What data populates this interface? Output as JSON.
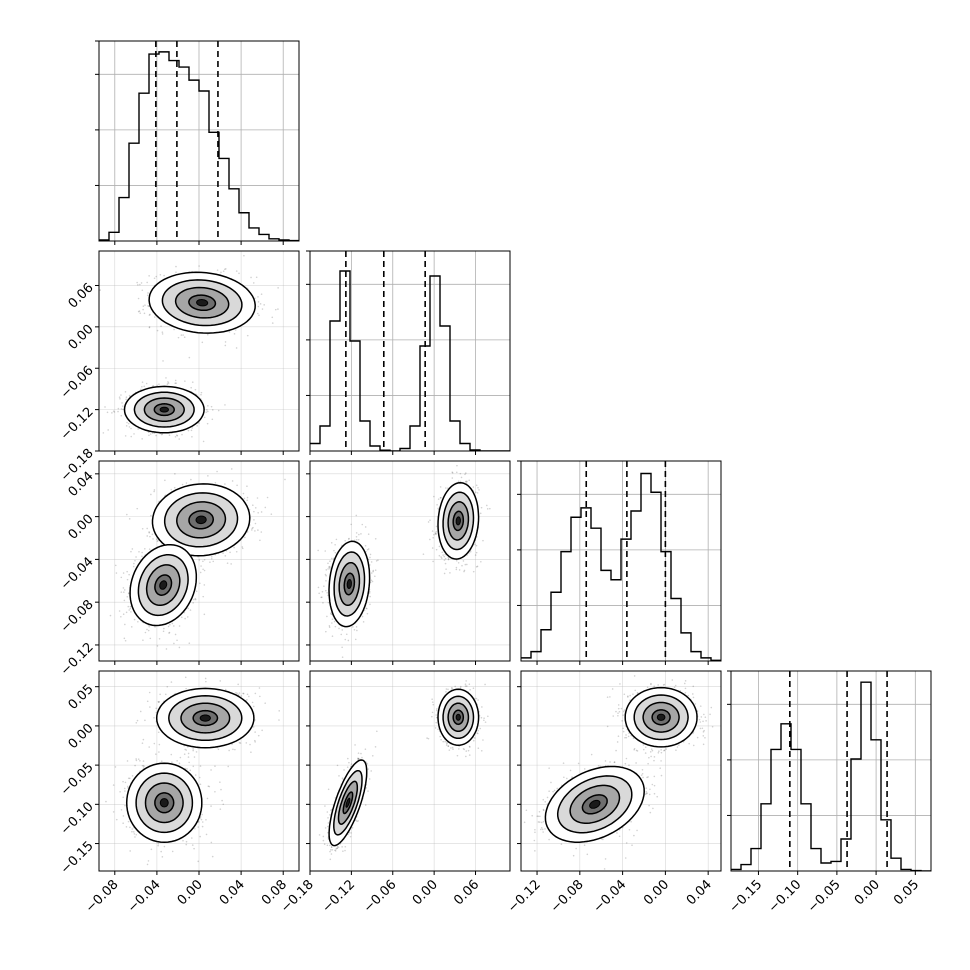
{
  "chart_data": {
    "type": "corner",
    "title": "",
    "n_params": 4,
    "parameters": [
      {
        "label": "",
        "range": [
          -0.095,
          0.095
        ],
        "tick_labels": [
          "−0.08",
          "−0.04",
          "0.00",
          "0.04",
          "0.08"
        ],
        "tick_values": [
          -0.08,
          -0.04,
          0.0,
          0.04,
          0.08
        ],
        "quantiles": [
          -0.041,
          -0.021,
          0.018
        ]
      },
      {
        "label": "",
        "range": [
          -0.18,
          0.11
        ],
        "tick_labels": [
          "−0.18",
          "−0.12",
          "−0.06",
          "0.00",
          "0.06"
        ],
        "tick_values": [
          -0.18,
          -0.12,
          -0.06,
          0.0,
          0.06
        ],
        "quantiles": [
          -0.128,
          -0.073,
          -0.013
        ]
      },
      {
        "label": "",
        "range": [
          -0.135,
          0.052
        ],
        "tick_labels": [
          "−0.12",
          "−0.08",
          "−0.04",
          "0.00",
          "0.04"
        ],
        "tick_values": [
          -0.12,
          -0.08,
          -0.04,
          0.0,
          0.04
        ],
        "quantiles": [
          -0.074,
          -0.036,
          0.0
        ]
      },
      {
        "label": "",
        "range": [
          -0.185,
          0.07
        ],
        "tick_labels": [
          "−0.15",
          "−0.10",
          "−0.05",
          "0.00",
          "0.05"
        ],
        "tick_values": [
          -0.15,
          -0.1,
          -0.05,
          0.0,
          0.05
        ],
        "quantiles": [
          -0.11,
          -0.037,
          0.014
        ]
      }
    ],
    "histograms": [
      {
        "param": 0,
        "bins": 20,
        "counts": [
          0.5,
          4,
          20,
          45,
          68,
          86,
          87,
          83,
          80,
          74,
          69,
          50,
          38,
          24,
          13,
          6,
          3,
          1,
          0.5,
          0.2
        ],
        "ymax": 92
      },
      {
        "param": 1,
        "bins": 20,
        "counts": [
          3,
          10,
          52,
          72,
          44,
          12,
          2,
          0.3,
          0,
          1,
          10,
          42,
          70,
          50,
          12,
          3,
          0.4,
          0,
          0,
          0
        ],
        "ymax": 80
      },
      {
        "param": 2,
        "bins": 20,
        "counts": [
          2,
          6,
          20,
          44,
          70,
          92,
          98,
          85,
          58,
          52,
          78,
          96,
          120,
          108,
          70,
          40,
          18,
          6,
          2,
          0.4
        ],
        "ymax": 128
      },
      {
        "param": 3,
        "bins": 20,
        "counts": [
          1,
          4,
          14,
          42,
          76,
          92,
          76,
          42,
          14,
          5,
          6,
          20,
          70,
          118,
          82,
          32,
          8,
          1,
          0.3,
          0
        ],
        "ymax": 125
      }
    ],
    "pair_plots": [
      {
        "x_param": 0,
        "y_param": 1,
        "modes": [
          {
            "center": [
              0.003,
              0.035
            ],
            "sigma": [
              0.024,
              0.021
            ],
            "rho": -0.1,
            "weight": 0.5
          },
          {
            "center": [
              -0.033,
              -0.12
            ],
            "sigma": [
              0.018,
              0.016
            ],
            "rho": 0.0,
            "weight": 0.5
          }
        ]
      },
      {
        "x_param": 0,
        "y_param": 2,
        "modes": [
          {
            "center": [
              0.002,
              -0.003
            ],
            "sigma": [
              0.022,
              0.016
            ],
            "rho": 0.05,
            "weight": 0.5
          },
          {
            "center": [
              -0.034,
              -0.064
            ],
            "sigma": [
              0.015,
              0.018
            ],
            "rho": 0.2,
            "weight": 0.5
          }
        ]
      },
      {
        "x_param": 0,
        "y_param": 3,
        "modes": [
          {
            "center": [
              0.006,
              0.01
            ],
            "sigma": [
              0.022,
              0.018
            ],
            "rho": 0.0,
            "weight": 0.5
          },
          {
            "center": [
              -0.033,
              -0.098
            ],
            "sigma": [
              0.017,
              0.024
            ],
            "rho": 0.0,
            "weight": 0.5
          }
        ]
      },
      {
        "x_param": 1,
        "y_param": 2,
        "modes": [
          {
            "center": [
              0.035,
              -0.004
            ],
            "sigma": [
              0.014,
              0.017
            ],
            "rho": 0.1,
            "weight": 0.5
          },
          {
            "center": [
              -0.123,
              -0.063
            ],
            "sigma": [
              0.014,
              0.019
            ],
            "rho": 0.15,
            "weight": 0.5
          }
        ]
      },
      {
        "x_param": 1,
        "y_param": 3,
        "modes": [
          {
            "center": [
              0.035,
              0.011
            ],
            "sigma": [
              0.014,
              0.017
            ],
            "rho": 0.0,
            "weight": 0.5
          },
          {
            "center": [
              -0.125,
              -0.098
            ],
            "sigma": [
              0.013,
              0.026
            ],
            "rho": 0.72,
            "weight": 0.5
          }
        ]
      },
      {
        "x_param": 2,
        "y_param": 3,
        "modes": [
          {
            "center": [
              -0.004,
              0.011
            ],
            "sigma": [
              0.016,
              0.018
            ],
            "rho": 0.0,
            "weight": 0.5
          },
          {
            "center": [
              -0.066,
              -0.1
            ],
            "sigma": [
              0.022,
              0.023
            ],
            "rho": 0.35,
            "weight": 0.5
          }
        ]
      }
    ],
    "contour_levels_sigma": [
      0.5,
      1.0,
      1.5,
      2.0
    ],
    "grid": true,
    "colors": {
      "line": "#000000",
      "grid": "#b0b0b0",
      "scatter": "#000000"
    }
  }
}
